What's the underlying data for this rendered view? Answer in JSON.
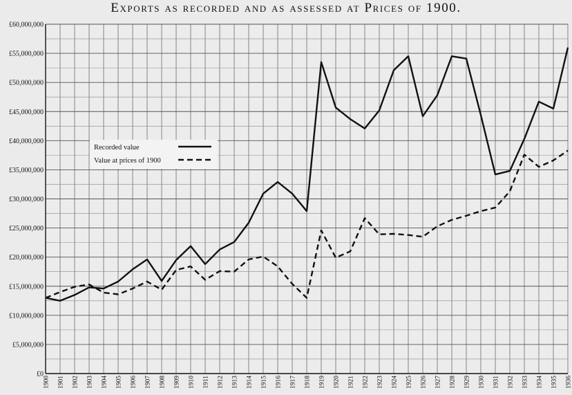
{
  "chart_data": {
    "type": "line",
    "title": "Exports as recorded and as assessed at Prices of 1900.",
    "xlabel": "",
    "ylabel": "",
    "x": [
      "1900",
      "1901",
      "1902",
      "1903",
      "1904",
      "1905",
      "1906",
      "1907",
      "1908",
      "1909",
      "1910",
      "1911",
      "1912",
      "1913",
      "1914",
      "1915",
      "1916",
      "1917",
      "1918",
      "1919",
      "1920",
      "1921",
      "1922",
      "1923",
      "1924",
      "1925",
      "1926",
      "1927",
      "1928",
      "1929",
      "1930",
      "1931",
      "1932",
      "1933",
      "1934",
      "1935",
      "1936"
    ],
    "ylim": [
      0,
      60000000
    ],
    "yticks": [
      {
        "value": 0,
        "label": "£0"
      },
      {
        "value": 5000000,
        "label": "£5,000,000"
      },
      {
        "value": 10000000,
        "label": "£10,000,000"
      },
      {
        "value": 15000000,
        "label": "£15,000,000"
      },
      {
        "value": 20000000,
        "label": "£20,000,000"
      },
      {
        "value": 25000000,
        "label": "£25,000,000"
      },
      {
        "value": 30000000,
        "label": "£30,000,000"
      },
      {
        "value": 35000000,
        "label": "£35,000,000"
      },
      {
        "value": 40000000,
        "label": "£40,000,000"
      },
      {
        "value": 45000000,
        "label": "£45,000,000"
      },
      {
        "value": 50000000,
        "label": "£50,000,000"
      },
      {
        "value": 55000000,
        "label": "£55,000,000"
      },
      {
        "value": 60000000,
        "label": "£60,000,000"
      }
    ],
    "grid": true,
    "legend_position": "upper-left",
    "series": [
      {
        "name": "Recorded value",
        "style": "solid",
        "color": "#111111",
        "values": [
          13000000,
          12500000,
          13500000,
          14800000,
          14600000,
          15800000,
          17900000,
          19600000,
          15900000,
          19500000,
          21900000,
          18800000,
          21300000,
          22600000,
          25900000,
          30900000,
          32900000,
          30900000,
          27900000,
          53500000,
          45700000,
          43700000,
          42100000,
          45200000,
          52100000,
          54500000,
          44200000,
          47800000,
          54500000,
          54100000,
          44400000,
          34200000,
          34800000,
          40300000,
          46700000,
          45500000,
          56000000
        ]
      },
      {
        "name": "Value at prices of 1900",
        "style": "dashed",
        "color": "#111111",
        "values": [
          13000000,
          14000000,
          14900000,
          15300000,
          13900000,
          13600000,
          14600000,
          15800000,
          14400000,
          17800000,
          18400000,
          16100000,
          17600000,
          17500000,
          19600000,
          20100000,
          18400000,
          15400000,
          13000000,
          24600000,
          19900000,
          21000000,
          26700000,
          23900000,
          24000000,
          23800000,
          23500000,
          25300000,
          26400000,
          27100000,
          27900000,
          28500000,
          31300000,
          37600000,
          35500000,
          36600000,
          38300000
        ]
      }
    ]
  }
}
